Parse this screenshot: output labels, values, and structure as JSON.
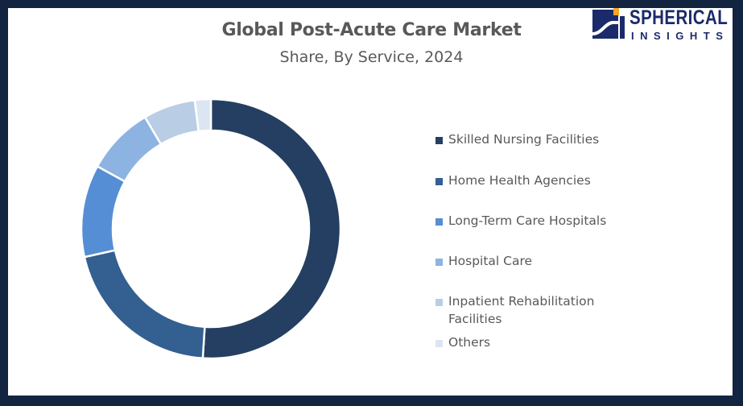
{
  "title": "Global Post-Acute Care Market",
  "subtitle": "Share, By Service, 2024",
  "logo": {
    "line1": "SPHERICAL",
    "line2": "INSIGHTS"
  },
  "colors": {
    "frame": "#12243f",
    "text": "#595959",
    "logo": "#1b2a6b",
    "logo_accent": "#f5a623"
  },
  "chart_data": {
    "type": "pie",
    "variant": "donut",
    "title": "Global Post-Acute Care Market",
    "subtitle": "Share, By Service, 2024",
    "categories": [
      "Skilled Nursing Facilities",
      "Home Health Agencies",
      "Long-Term Care Hospitals",
      "Hospital Care",
      "Inpatient Rehabilitation Facilities",
      "Others"
    ],
    "values": [
      51,
      20.5,
      11.5,
      8.5,
      6.5,
      2
    ],
    "unit": "% share (estimated from slice angles)",
    "colors": [
      "#243f61",
      "#335f91",
      "#558ed5",
      "#8db3e2",
      "#b9cde5",
      "#dce6f2"
    ],
    "legend_position": "right",
    "data_labels": false
  },
  "legend": {
    "items": [
      {
        "label": "Skilled Nursing Facilities",
        "color": "#243f61"
      },
      {
        "label": "Home Health Agencies",
        "color": "#335f91"
      },
      {
        "label": "Long-Term Care Hospitals",
        "color": "#558ed5"
      },
      {
        "label": "Hospital Care",
        "color": "#8db3e2"
      },
      {
        "label": "Inpatient Rehabilitation",
        "label2": "Facilities",
        "color": "#b9cde5"
      },
      {
        "label": "Others",
        "color": "#dce6f2"
      }
    ]
  }
}
